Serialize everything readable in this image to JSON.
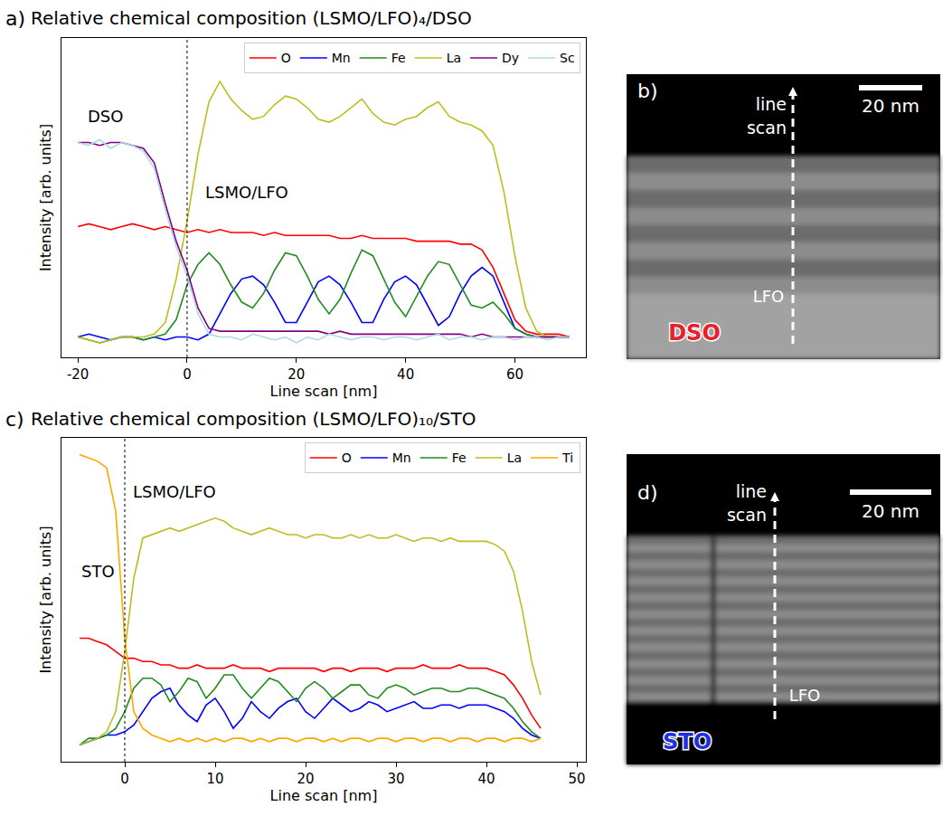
{
  "chart_data": [
    {
      "type": "line",
      "letter": "a)",
      "title": "Relative chemical composition (LSMO/LFO)₄/DSO",
      "x_label": "Line scan [nm]",
      "y_label": "Intensity [arb. units]",
      "x": [
        -20,
        -18,
        -16,
        -14,
        -12,
        -10,
        -8,
        -6,
        -4,
        -2,
        0,
        2,
        4,
        6,
        8,
        10,
        12,
        14,
        16,
        18,
        20,
        22,
        24,
        26,
        28,
        30,
        32,
        34,
        36,
        38,
        40,
        42,
        44,
        46,
        48,
        50,
        52,
        54,
        56,
        58,
        60,
        62,
        64,
        66,
        68,
        70
      ],
      "series": [
        {
          "name": "O",
          "color": "#ff0000",
          "values": [
            0.5,
            0.51,
            0.5,
            0.49,
            0.5,
            0.51,
            0.5,
            0.49,
            0.5,
            0.49,
            0.48,
            0.49,
            0.48,
            0.49,
            0.48,
            0.48,
            0.48,
            0.47,
            0.48,
            0.47,
            0.47,
            0.47,
            0.47,
            0.47,
            0.46,
            0.46,
            0.47,
            0.46,
            0.46,
            0.46,
            0.46,
            0.45,
            0.45,
            0.45,
            0.45,
            0.44,
            0.44,
            0.42,
            0.36,
            0.27,
            0.18,
            0.14,
            0.13,
            0.13,
            0.13,
            0.12
          ]
        },
        {
          "name": "Mn",
          "color": "#0000ff",
          "values": [
            0.12,
            0.13,
            0.12,
            0.11,
            0.12,
            0.12,
            0.11,
            0.12,
            0.11,
            0.12,
            0.12,
            0.11,
            0.13,
            0.2,
            0.27,
            0.32,
            0.33,
            0.3,
            0.24,
            0.17,
            0.17,
            0.24,
            0.31,
            0.33,
            0.3,
            0.24,
            0.17,
            0.17,
            0.25,
            0.31,
            0.33,
            0.3,
            0.23,
            0.16,
            0.19,
            0.27,
            0.33,
            0.36,
            0.33,
            0.24,
            0.15,
            0.13,
            0.12,
            0.12,
            0.12,
            0.12
          ]
        },
        {
          "name": "Fe",
          "color": "#228b22",
          "values": [
            0.12,
            0.11,
            0.1,
            0.11,
            0.12,
            0.12,
            0.11,
            0.12,
            0.13,
            0.18,
            0.3,
            0.37,
            0.41,
            0.37,
            0.3,
            0.24,
            0.22,
            0.27,
            0.35,
            0.41,
            0.4,
            0.33,
            0.25,
            0.2,
            0.25,
            0.34,
            0.42,
            0.4,
            0.32,
            0.24,
            0.19,
            0.26,
            0.33,
            0.38,
            0.37,
            0.3,
            0.23,
            0.22,
            0.24,
            0.2,
            0.15,
            0.13,
            0.12,
            0.12,
            0.12,
            0.12
          ]
        },
        {
          "name": "La",
          "color": "#bcbd22",
          "values": [
            0.12,
            0.11,
            0.1,
            0.11,
            0.12,
            0.12,
            0.12,
            0.13,
            0.17,
            0.32,
            0.52,
            0.75,
            0.93,
            1.0,
            0.94,
            0.9,
            0.87,
            0.88,
            0.92,
            0.95,
            0.94,
            0.91,
            0.87,
            0.86,
            0.88,
            0.91,
            0.94,
            0.89,
            0.86,
            0.85,
            0.87,
            0.88,
            0.91,
            0.93,
            0.88,
            0.86,
            0.85,
            0.83,
            0.78,
            0.62,
            0.4,
            0.22,
            0.14,
            0.12,
            0.12,
            0.12
          ]
        },
        {
          "name": "Dy",
          "color": "#800080",
          "values": [
            0.79,
            0.79,
            0.78,
            0.79,
            0.79,
            0.78,
            0.77,
            0.72,
            0.58,
            0.45,
            0.35,
            0.22,
            0.15,
            0.14,
            0.14,
            0.14,
            0.14,
            0.14,
            0.14,
            0.14,
            0.14,
            0.14,
            0.14,
            0.13,
            0.14,
            0.13,
            0.13,
            0.13,
            0.13,
            0.13,
            0.13,
            0.13,
            0.13,
            0.13,
            0.13,
            0.13,
            0.12,
            0.13,
            0.12,
            0.12,
            0.12,
            0.12,
            0.12,
            0.12,
            0.12,
            0.12
          ]
        },
        {
          "name": "Sc",
          "color": "#add8e6",
          "values": [
            0.79,
            0.78,
            0.8,
            0.77,
            0.79,
            0.78,
            0.76,
            0.7,
            0.56,
            0.43,
            0.33,
            0.2,
            0.13,
            0.12,
            0.12,
            0.11,
            0.13,
            0.12,
            0.11,
            0.12,
            0.1,
            0.12,
            0.11,
            0.13,
            0.12,
            0.11,
            0.12,
            0.12,
            0.11,
            0.12,
            0.12,
            0.11,
            0.12,
            0.13,
            0.11,
            0.12,
            0.12,
            0.11,
            0.12,
            0.12,
            0.11,
            0.12,
            0.12,
            0.11,
            0.12,
            0.12
          ]
        }
      ],
      "xlim": [
        -23,
        73
      ],
      "xticks": [
        -20,
        0,
        20,
        40,
        60
      ],
      "ylim": [
        0.05,
        1.15
      ],
      "tick_labels": "x",
      "grid": false,
      "legend": "upper right",
      "annotations": [
        {
          "text": "DSO",
          "x": -15,
          "y": 0.88
        },
        {
          "text": "LSMO/LFO",
          "x": 11,
          "y": 0.62
        }
      ],
      "reference_lines": [
        {
          "x": 0,
          "line_style": "dotted"
        }
      ]
    },
    {
      "type": "line",
      "letter": "c)",
      "title": "Relative chemical composition (LSMO/LFO)₁₀/STO",
      "x_label": "Line scan [nm]",
      "y_label": "Intensity [arb. units]",
      "x": [
        -5,
        -4,
        -3,
        -2,
        -1,
        0,
        1,
        2,
        3,
        4,
        5,
        6,
        7,
        8,
        9,
        10,
        11,
        12,
        13,
        14,
        15,
        16,
        17,
        18,
        19,
        20,
        21,
        22,
        23,
        24,
        25,
        26,
        27,
        28,
        29,
        30,
        31,
        32,
        33,
        34,
        35,
        36,
        37,
        38,
        39,
        40,
        41,
        42,
        43,
        44,
        45,
        46
      ],
      "series": [
        {
          "name": "O",
          "color": "#ff0000",
          "values": [
            0.42,
            0.42,
            0.41,
            0.4,
            0.38,
            0.36,
            0.36,
            0.35,
            0.35,
            0.34,
            0.34,
            0.33,
            0.33,
            0.34,
            0.33,
            0.33,
            0.33,
            0.34,
            0.33,
            0.33,
            0.33,
            0.32,
            0.33,
            0.33,
            0.33,
            0.33,
            0.33,
            0.32,
            0.33,
            0.33,
            0.32,
            0.33,
            0.33,
            0.33,
            0.32,
            0.33,
            0.33,
            0.33,
            0.34,
            0.33,
            0.33,
            0.33,
            0.34,
            0.33,
            0.33,
            0.33,
            0.32,
            0.31,
            0.28,
            0.24,
            0.19,
            0.15
          ]
        },
        {
          "name": "Mn",
          "color": "#0000ff",
          "values": [
            0.1,
            0.11,
            0.12,
            0.13,
            0.13,
            0.14,
            0.16,
            0.2,
            0.24,
            0.26,
            0.27,
            0.22,
            0.19,
            0.17,
            0.22,
            0.24,
            0.2,
            0.15,
            0.18,
            0.23,
            0.2,
            0.18,
            0.21,
            0.23,
            0.24,
            0.2,
            0.18,
            0.21,
            0.24,
            0.22,
            0.2,
            0.21,
            0.23,
            0.22,
            0.2,
            0.21,
            0.22,
            0.23,
            0.21,
            0.21,
            0.22,
            0.22,
            0.21,
            0.22,
            0.22,
            0.22,
            0.21,
            0.2,
            0.18,
            0.15,
            0.13,
            0.12
          ]
        },
        {
          "name": "Fe",
          "color": "#228b22",
          "values": [
            0.1,
            0.12,
            0.12,
            0.13,
            0.15,
            0.2,
            0.27,
            0.3,
            0.3,
            0.28,
            0.23,
            0.26,
            0.3,
            0.29,
            0.24,
            0.27,
            0.31,
            0.31,
            0.27,
            0.24,
            0.27,
            0.3,
            0.29,
            0.26,
            0.23,
            0.27,
            0.29,
            0.27,
            0.24,
            0.26,
            0.28,
            0.28,
            0.25,
            0.24,
            0.27,
            0.28,
            0.27,
            0.25,
            0.26,
            0.27,
            0.27,
            0.26,
            0.26,
            0.27,
            0.27,
            0.26,
            0.25,
            0.24,
            0.21,
            0.17,
            0.14,
            0.12
          ]
        },
        {
          "name": "La",
          "color": "#bcbd22",
          "values": [
            0.1,
            0.11,
            0.12,
            0.14,
            0.2,
            0.38,
            0.6,
            0.72,
            0.73,
            0.74,
            0.75,
            0.74,
            0.75,
            0.76,
            0.77,
            0.78,
            0.77,
            0.75,
            0.74,
            0.73,
            0.74,
            0.75,
            0.74,
            0.73,
            0.73,
            0.72,
            0.73,
            0.73,
            0.72,
            0.72,
            0.73,
            0.72,
            0.73,
            0.72,
            0.72,
            0.73,
            0.72,
            0.71,
            0.72,
            0.72,
            0.71,
            0.72,
            0.71,
            0.71,
            0.71,
            0.71,
            0.7,
            0.68,
            0.62,
            0.5,
            0.35,
            0.25
          ]
        },
        {
          "name": "Ti",
          "color": "#ffa500",
          "values": [
            0.97,
            0.96,
            0.95,
            0.93,
            0.8,
            0.42,
            0.2,
            0.15,
            0.13,
            0.12,
            0.11,
            0.12,
            0.11,
            0.12,
            0.11,
            0.12,
            0.11,
            0.12,
            0.12,
            0.11,
            0.12,
            0.11,
            0.12,
            0.12,
            0.11,
            0.12,
            0.12,
            0.11,
            0.12,
            0.11,
            0.12,
            0.12,
            0.11,
            0.12,
            0.12,
            0.11,
            0.12,
            0.12,
            0.11,
            0.12,
            0.12,
            0.11,
            0.12,
            0.12,
            0.11,
            0.12,
            0.12,
            0.11,
            0.12,
            0.12,
            0.11,
            0.12
          ]
        }
      ],
      "xlim": [
        -7,
        51
      ],
      "xticks": [
        0,
        10,
        20,
        30,
        40,
        50
      ],
      "ylim": [
        0.05,
        1.02
      ],
      "tick_labels": "x",
      "grid": false,
      "legend": "upper right",
      "annotations": [
        {
          "text": "STO",
          "x": -3,
          "y": 0.62
        },
        {
          "text": "LSMO/LFO",
          "x": 5.5,
          "y": 0.86
        }
      ],
      "reference_lines": [
        {
          "x": 0,
          "line_style": "dotted"
        }
      ]
    }
  ],
  "images": [
    {
      "letter": "b)",
      "arrow_label": "line scan",
      "scale_bar": "20 nm",
      "layer_label": "LFO",
      "substrate": "DSO",
      "substrate_color": "#e8202a"
    },
    {
      "letter": "d)",
      "arrow_label": "line scan",
      "scale_bar": "20 nm",
      "layer_label": "LFO",
      "substrate": "STO",
      "substrate_color": "#2030e0"
    }
  ]
}
